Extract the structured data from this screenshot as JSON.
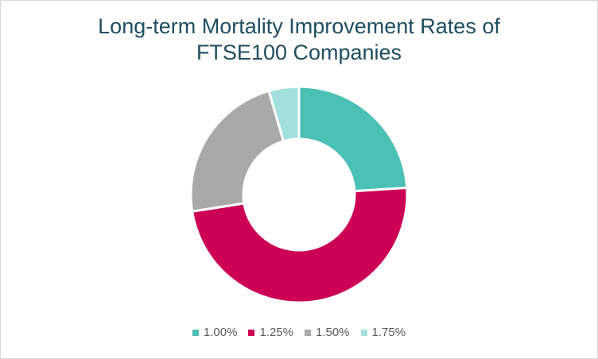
{
  "chart_data": {
    "type": "pie",
    "title_lines": [
      "Long-term Mortality Improvement Rates of",
      "FTSE100 Companies"
    ],
    "categories": [
      "1.00%",
      "1.25%",
      "1.50%",
      "1.75%"
    ],
    "values": [
      24,
      48.5,
      23,
      4.5
    ],
    "colors": [
      "#4bc0b5",
      "#cc0055",
      "#a9a9a9",
      "#a3e0dc"
    ],
    "donut": true,
    "start_angle_deg": 0,
    "direction": "clockwise",
    "legend_position": "bottom"
  }
}
